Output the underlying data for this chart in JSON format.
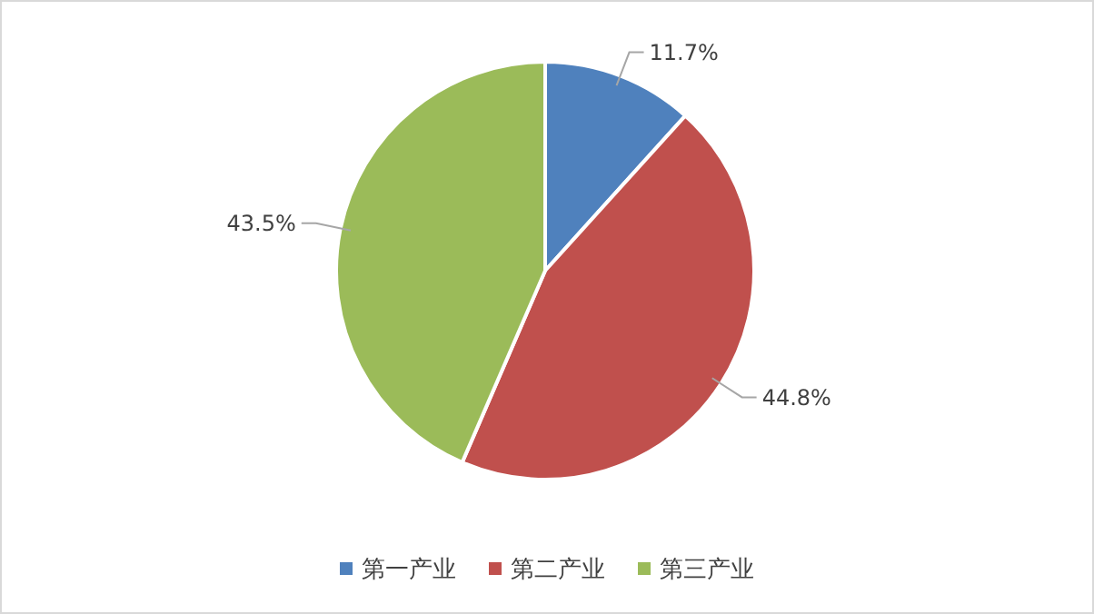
{
  "chart_data": {
    "type": "pie",
    "categories": [
      "第一产业",
      "第二产业",
      "第三产业"
    ],
    "values": [
      11.7,
      44.8,
      43.5
    ],
    "colors": [
      "#4f81bd",
      "#c0504d",
      "#9bbb59"
    ],
    "value_labels": [
      "11.7%",
      "44.8%",
      "43.5%"
    ],
    "legend": "bottom"
  }
}
